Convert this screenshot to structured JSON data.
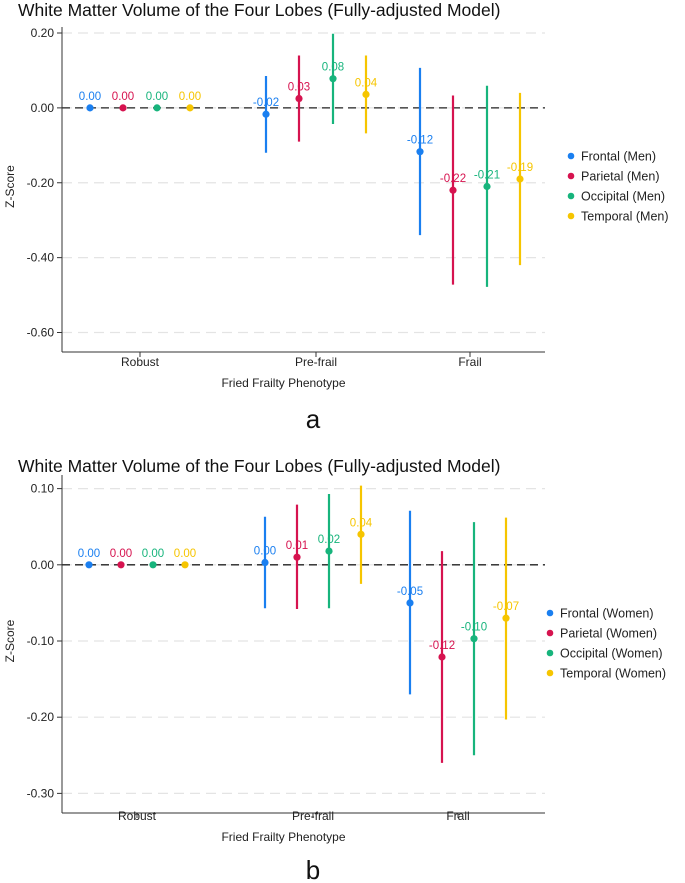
{
  "chart_data": [
    {
      "type": "scatter",
      "panel": "a",
      "title": "White Matter Volume of the Four Lobes (Fully-adjusted Model)",
      "xlabel": "Fried Frailty Phenotype",
      "ylabel": "Z-Score",
      "ylim": [
        -0.62,
        0.2
      ],
      "yticks": [
        0.2,
        0.0,
        -0.2,
        -0.4,
        -0.6
      ],
      "ytick_labels": [
        "0.20",
        "0.00",
        "-0.20",
        "-0.40",
        "-0.60"
      ],
      "categories": [
        "Robust",
        "Pre-frail",
        "Frail"
      ],
      "series": [
        {
          "name": "Frontal (Men)",
          "color": "#1a7ff0",
          "points": [
            {
              "value": 0.0,
              "lo": 0.0,
              "hi": 0.0,
              "label": "0.00"
            },
            {
              "value": -0.017,
              "lo": -0.12,
              "hi": 0.085,
              "label": "-0.02"
            },
            {
              "value": -0.117,
              "lo": -0.34,
              "hi": 0.107,
              "label": "-0.12"
            }
          ]
        },
        {
          "name": "Parietal (Men)",
          "color": "#d6134f",
          "points": [
            {
              "value": 0.0,
              "lo": 0.0,
              "hi": 0.0,
              "label": "0.00"
            },
            {
              "value": 0.025,
              "lo": -0.09,
              "hi": 0.14,
              "label": "0.03"
            },
            {
              "value": -0.22,
              "lo": -0.472,
              "hi": 0.033,
              "label": "-0.22"
            }
          ]
        },
        {
          "name": "Occipital (Men)",
          "color": "#17b47c",
          "points": [
            {
              "value": 0.0,
              "lo": 0.0,
              "hi": 0.0,
              "label": "0.00"
            },
            {
              "value": 0.078,
              "lo": -0.043,
              "hi": 0.198,
              "label": "0.08"
            },
            {
              "value": -0.21,
              "lo": -0.478,
              "hi": 0.059,
              "label": "-0.21"
            }
          ]
        },
        {
          "name": "Temporal (Men)",
          "color": "#f6c500",
          "points": [
            {
              "value": 0.0,
              "lo": 0.0,
              "hi": 0.0,
              "label": "0.00"
            },
            {
              "value": 0.036,
              "lo": -0.068,
              "hi": 0.14,
              "label": "0.04"
            },
            {
              "value": -0.19,
              "lo": -0.42,
              "hi": 0.04,
              "label": "-0.19"
            }
          ]
        }
      ]
    },
    {
      "type": "scatter",
      "panel": "b",
      "title": "White Matter Volume of the Four Lobes (Fully-adjusted Model)",
      "xlabel": "Fried Frailty Phenotype",
      "ylabel": "Z-Score",
      "ylim": [
        -0.31,
        0.11
      ],
      "yticks": [
        0.1,
        0.0,
        -0.1,
        -0.2,
        -0.3
      ],
      "ytick_labels": [
        "0.10",
        "0.00",
        "-0.10",
        "-0.20",
        "-0.30"
      ],
      "categories": [
        "Robust",
        "Pre-frail",
        "Frail"
      ],
      "series": [
        {
          "name": "Frontal (Women)",
          "color": "#1a7ff0",
          "points": [
            {
              "value": 0.0,
              "lo": 0.0,
              "hi": 0.0,
              "label": "0.00"
            },
            {
              "value": 0.003,
              "lo": -0.057,
              "hi": 0.063,
              "label": "0.00"
            },
            {
              "value": -0.05,
              "lo": -0.17,
              "hi": 0.071,
              "label": "-0.05"
            }
          ]
        },
        {
          "name": "Parietal (Women)",
          "color": "#d6134f",
          "points": [
            {
              "value": 0.0,
              "lo": 0.0,
              "hi": 0.0,
              "label": "0.00"
            },
            {
              "value": 0.01,
              "lo": -0.058,
              "hi": 0.079,
              "label": "0.01"
            },
            {
              "value": -0.121,
              "lo": -0.26,
              "hi": 0.018,
              "label": "-0.12"
            }
          ]
        },
        {
          "name": "Occipital (Women)",
          "color": "#17b47c",
          "points": [
            {
              "value": 0.0,
              "lo": 0.0,
              "hi": 0.0,
              "label": "0.00"
            },
            {
              "value": 0.018,
              "lo": -0.057,
              "hi": 0.093,
              "label": "0.02"
            },
            {
              "value": -0.097,
              "lo": -0.25,
              "hi": 0.056,
              "label": "-0.10"
            }
          ]
        },
        {
          "name": "Temporal (Women)",
          "color": "#f6c500",
          "points": [
            {
              "value": 0.0,
              "lo": 0.0,
              "hi": 0.0,
              "label": "0.00"
            },
            {
              "value": 0.04,
              "lo": -0.025,
              "hi": 0.104,
              "label": "0.04"
            },
            {
              "value": -0.07,
              "lo": -0.203,
              "hi": 0.062,
              "label": "-0.07"
            }
          ]
        }
      ]
    }
  ]
}
